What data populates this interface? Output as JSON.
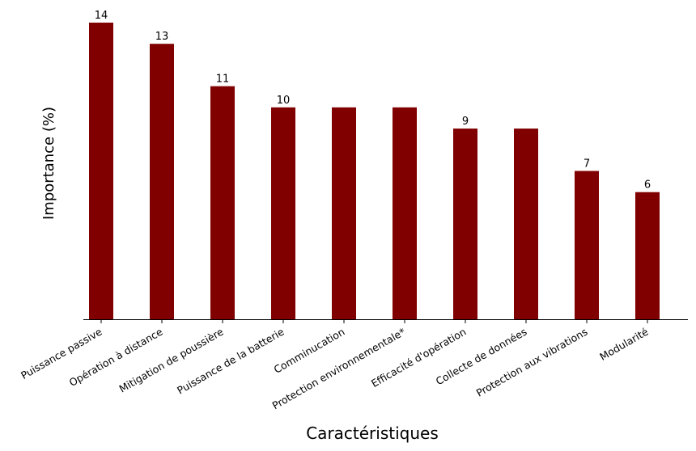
{
  "chart_data": {
    "type": "bar",
    "title": "",
    "xlabel": "Caractéristiques",
    "ylabel": "Importance (%)",
    "categories": [
      "Puissance passive",
      "Opération à distance",
      "Mitigation de poussière",
      "Puissance de la batterie",
      "Comminucation",
      "Protection environnementale*",
      "Efficacité d'opération",
      "Collecte de données",
      "Protection aux vibrations",
      "Modularité"
    ],
    "values": [
      14,
      13,
      11,
      10,
      10,
      10,
      9,
      9,
      7,
      6
    ],
    "data_labels": [
      "14",
      "13",
      "11",
      "10",
      "",
      "",
      "9",
      "",
      "7",
      "6"
    ],
    "ylim": [
      0,
      14
    ],
    "bar_color": "#800000",
    "grid": false,
    "legend": "none"
  }
}
